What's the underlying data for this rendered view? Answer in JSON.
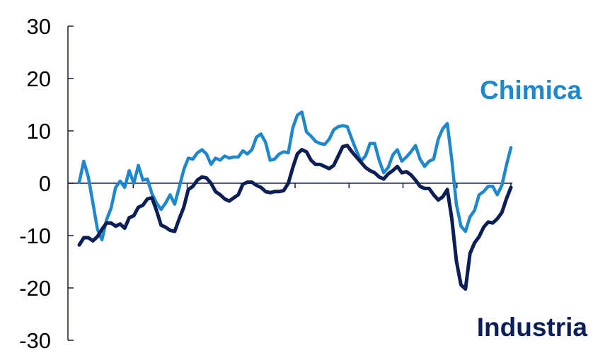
{
  "chart_data": {
    "type": "line",
    "ylim": [
      -30,
      30
    ],
    "yticks": [
      30,
      20,
      10,
      0,
      -10,
      -20,
      -30
    ],
    "ytick_labels": [
      "30",
      "20",
      "10",
      "0",
      "-10",
      "-20",
      "-30"
    ],
    "x_tick_count": 8,
    "grid": false,
    "legend": "inline labels at right",
    "series": [
      {
        "name": "Chimica",
        "color": "#1f87cc",
        "values": [
          0.2,
          4.2,
          1.2,
          -3.8,
          -8.8,
          -10.8,
          -7.0,
          -4.8,
          -0.8,
          0.4,
          -0.8,
          2.4,
          0.0,
          3.4,
          0.6,
          0.8,
          -2.0,
          -3.8,
          -5.0,
          -3.8,
          -2.2,
          -4.0,
          -0.8,
          2.6,
          4.8,
          4.6,
          5.8,
          6.4,
          5.6,
          3.6,
          4.8,
          4.4,
          5.2,
          4.8,
          5.0,
          5.0,
          6.2,
          5.6,
          6.4,
          8.8,
          9.4,
          7.8,
          4.4,
          4.6,
          5.6,
          6.0,
          5.8,
          10.6,
          13.0,
          13.6,
          9.8,
          9.0,
          8.0,
          7.6,
          7.4,
          8.4,
          10.2,
          10.8,
          11.0,
          10.8,
          8.4,
          6.2,
          4.2,
          5.2,
          7.6,
          7.6,
          4.4,
          2.0,
          3.0,
          5.4,
          6.4,
          4.2,
          5.0,
          6.0,
          7.2,
          4.6,
          3.2,
          4.2,
          4.6,
          8.4,
          10.4,
          11.4,
          4.4,
          -4.0,
          -8.2,
          -9.2,
          -6.4,
          -5.2,
          -2.2,
          -1.6,
          -0.6,
          -0.6,
          -2.2,
          -0.4,
          3.4,
          6.8
        ]
      },
      {
        "name": "Industria",
        "color": "#0b1e56",
        "values": [
          -11.8,
          -10.4,
          -10.4,
          -11.0,
          -10.2,
          -8.8,
          -7.6,
          -7.6,
          -8.2,
          -7.8,
          -8.6,
          -6.6,
          -6.2,
          -4.6,
          -4.2,
          -3.0,
          -2.8,
          -5.2,
          -8.0,
          -8.4,
          -9.0,
          -9.2,
          -6.8,
          -4.6,
          -1.2,
          -0.6,
          0.6,
          1.2,
          1.0,
          0.0,
          -1.6,
          -2.2,
          -3.0,
          -3.4,
          -2.8,
          -2.2,
          -0.2,
          0.2,
          0.2,
          -0.4,
          -0.8,
          -1.6,
          -1.8,
          -1.6,
          -1.6,
          -1.4,
          0.0,
          3.0,
          5.6,
          6.4,
          6.0,
          4.4,
          3.6,
          3.6,
          3.2,
          2.8,
          3.4,
          5.2,
          7.0,
          7.2,
          6.0,
          5.0,
          4.0,
          3.0,
          2.4,
          2.0,
          1.2,
          0.8,
          1.8,
          2.4,
          3.2,
          2.0,
          2.2,
          1.6,
          0.6,
          -0.6,
          -1.0,
          -1.0,
          -2.2,
          -3.2,
          -2.6,
          -1.2,
          -6.8,
          -14.8,
          -19.4,
          -20.2,
          -13.4,
          -11.4,
          -10.2,
          -8.4,
          -7.4,
          -7.6,
          -6.8,
          -5.6,
          -3.0,
          -0.8
        ]
      }
    ]
  }
}
